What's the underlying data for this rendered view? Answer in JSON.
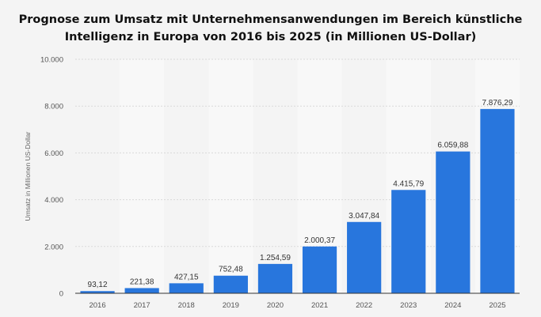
{
  "title": {
    "line1": "Prognose zum Umsatz mit Unternehmensanwendungen im Bereich künstliche",
    "line2": "Intelligenz in Europa von 2016 bis 2025 (in Millionen US-Dollar)"
  },
  "colors": {
    "bar": "#2876dd",
    "band": "#f8f8f8",
    "background": "#f4f4f4"
  },
  "chart_data": {
    "type": "bar",
    "title": "Prognose zum Umsatz mit Unternehmensanwendungen im Bereich künstliche Intelligenz in Europa von 2016 bis 2025 (in Millionen US-Dollar)",
    "xlabel": "",
    "ylabel": "Umsatz in Millionen US-Dollar",
    "categories": [
      "2016",
      "2017",
      "2018",
      "2019",
      "2020",
      "2021",
      "2022",
      "2023",
      "2024",
      "2025"
    ],
    "values": [
      93.12,
      221.38,
      427.15,
      752.48,
      1254.59,
      2000.37,
      3047.84,
      4415.79,
      6059.88,
      7876.29
    ],
    "value_labels": [
      "93,12",
      "221,38",
      "427,15",
      "752,48",
      "1.254,59",
      "2.000,37",
      "3.047,84",
      "4.415,79",
      "6.059,88",
      "7.876,29"
    ],
    "ylim": [
      0,
      10000
    ],
    "yticks": [
      0,
      2000,
      4000,
      6000,
      8000,
      10000
    ],
    "ytick_labels": [
      "0",
      "2.000",
      "4.000",
      "6.000",
      "8.000",
      "10.000"
    ],
    "grid": true,
    "legend": "none"
  }
}
